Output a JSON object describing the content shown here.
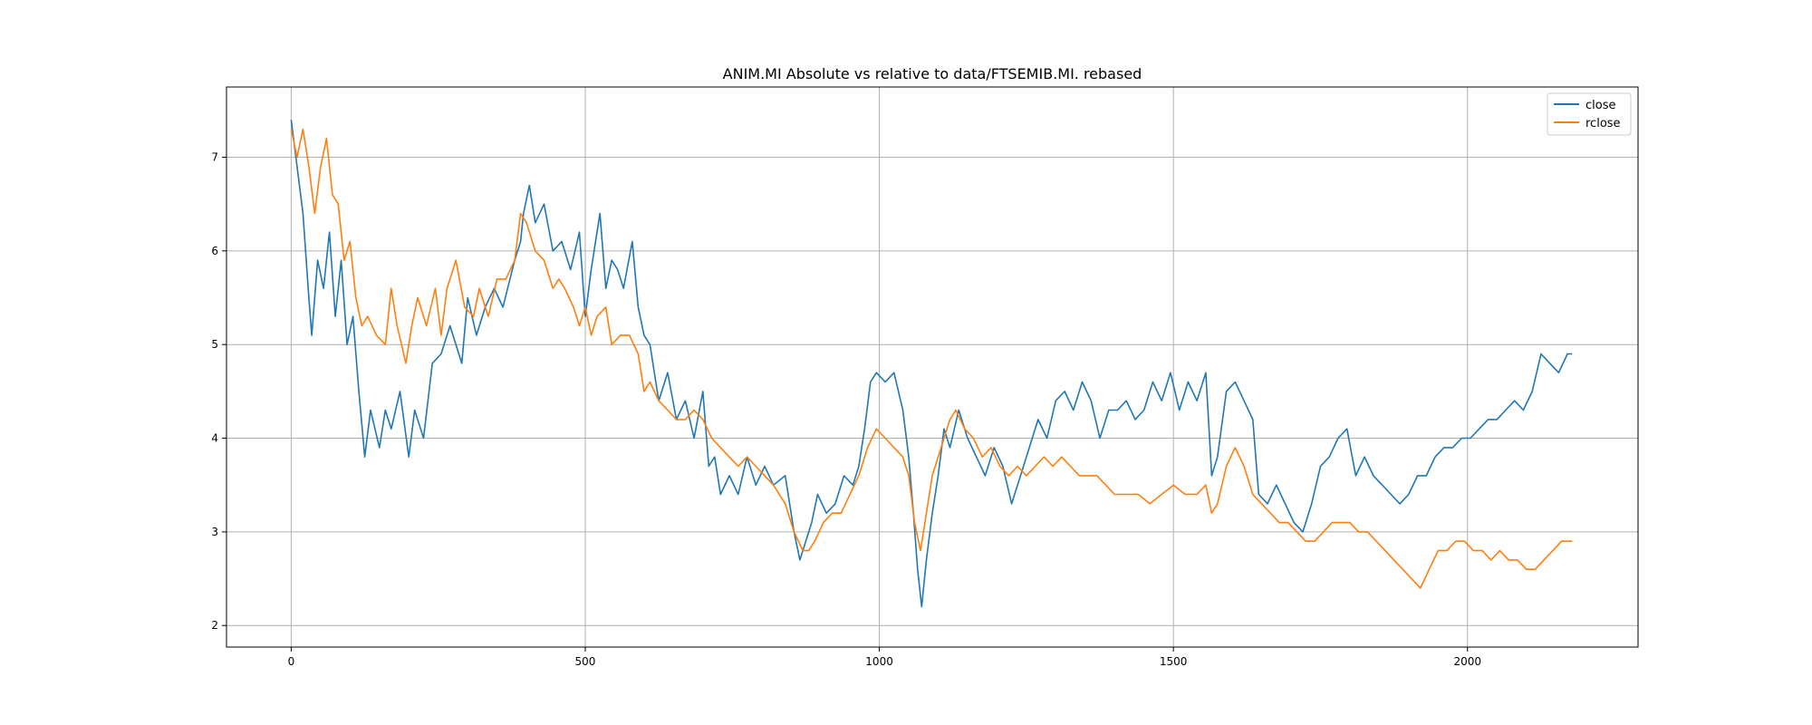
{
  "chart_data": {
    "type": "line",
    "title": "ANIM.MI Absolute vs relative to data/FTSEMIB.MI. rebased",
    "xlabel": "",
    "ylabel": "",
    "xlim": [
      -110,
      2290
    ],
    "ylim": [
      1.77,
      7.75
    ],
    "xticks": [
      0,
      500,
      1000,
      1500,
      2000
    ],
    "yticks": [
      2,
      3,
      4,
      5,
      6,
      7
    ],
    "grid": true,
    "legend_position": "top-right",
    "series": [
      {
        "name": "close",
        "color": "#1f77b4",
        "points": [
          [
            0,
            7.4
          ],
          [
            10,
            6.9
          ],
          [
            20,
            6.4
          ],
          [
            30,
            5.5
          ],
          [
            35,
            5.1
          ],
          [
            45,
            5.9
          ],
          [
            55,
            5.6
          ],
          [
            65,
            6.2
          ],
          [
            75,
            5.3
          ],
          [
            85,
            5.9
          ],
          [
            95,
            5.0
          ],
          [
            105,
            5.3
          ],
          [
            115,
            4.5
          ],
          [
            125,
            3.8
          ],
          [
            135,
            4.3
          ],
          [
            150,
            3.9
          ],
          [
            160,
            4.3
          ],
          [
            170,
            4.1
          ],
          [
            185,
            4.5
          ],
          [
            200,
            3.8
          ],
          [
            210,
            4.3
          ],
          [
            225,
            4.0
          ],
          [
            240,
            4.8
          ],
          [
            255,
            4.9
          ],
          [
            270,
            5.2
          ],
          [
            290,
            4.8
          ],
          [
            300,
            5.5
          ],
          [
            315,
            5.1
          ],
          [
            330,
            5.4
          ],
          [
            345,
            5.6
          ],
          [
            360,
            5.4
          ],
          [
            380,
            5.9
          ],
          [
            390,
            6.1
          ],
          [
            395,
            6.4
          ],
          [
            405,
            6.7
          ],
          [
            415,
            6.3
          ],
          [
            430,
            6.5
          ],
          [
            445,
            6.0
          ],
          [
            460,
            6.1
          ],
          [
            475,
            5.8
          ],
          [
            490,
            6.2
          ],
          [
            500,
            5.3
          ],
          [
            510,
            5.8
          ],
          [
            525,
            6.4
          ],
          [
            535,
            5.6
          ],
          [
            545,
            5.9
          ],
          [
            555,
            5.8
          ],
          [
            565,
            5.6
          ],
          [
            580,
            6.1
          ],
          [
            590,
            5.4
          ],
          [
            600,
            5.1
          ],
          [
            610,
            5.0
          ],
          [
            625,
            4.4
          ],
          [
            640,
            4.7
          ],
          [
            655,
            4.2
          ],
          [
            670,
            4.4
          ],
          [
            685,
            4.0
          ],
          [
            700,
            4.5
          ],
          [
            710,
            3.7
          ],
          [
            720,
            3.8
          ],
          [
            730,
            3.4
          ],
          [
            745,
            3.6
          ],
          [
            760,
            3.4
          ],
          [
            775,
            3.8
          ],
          [
            790,
            3.5
          ],
          [
            805,
            3.7
          ],
          [
            820,
            3.5
          ],
          [
            840,
            3.6
          ],
          [
            855,
            3.0
          ],
          [
            865,
            2.7
          ],
          [
            875,
            2.9
          ],
          [
            885,
            3.1
          ],
          [
            895,
            3.4
          ],
          [
            910,
            3.2
          ],
          [
            925,
            3.3
          ],
          [
            940,
            3.6
          ],
          [
            955,
            3.5
          ],
          [
            965,
            3.7
          ],
          [
            975,
            4.1
          ],
          [
            985,
            4.6
          ],
          [
            995,
            4.7
          ],
          [
            1010,
            4.6
          ],
          [
            1025,
            4.7
          ],
          [
            1040,
            4.3
          ],
          [
            1050,
            3.8
          ],
          [
            1058,
            3.2
          ],
          [
            1065,
            2.6
          ],
          [
            1072,
            2.2
          ],
          [
            1080,
            2.7
          ],
          [
            1090,
            3.2
          ],
          [
            1100,
            3.6
          ],
          [
            1110,
            4.1
          ],
          [
            1120,
            3.9
          ],
          [
            1135,
            4.3
          ],
          [
            1150,
            4.0
          ],
          [
            1165,
            3.8
          ],
          [
            1180,
            3.6
          ],
          [
            1195,
            3.9
          ],
          [
            1210,
            3.7
          ],
          [
            1225,
            3.3
          ],
          [
            1240,
            3.6
          ],
          [
            1255,
            3.9
          ],
          [
            1270,
            4.2
          ],
          [
            1285,
            4.0
          ],
          [
            1300,
            4.4
          ],
          [
            1315,
            4.5
          ],
          [
            1330,
            4.3
          ],
          [
            1345,
            4.6
          ],
          [
            1360,
            4.4
          ],
          [
            1375,
            4.0
          ],
          [
            1390,
            4.3
          ],
          [
            1405,
            4.3
          ],
          [
            1420,
            4.4
          ],
          [
            1435,
            4.2
          ],
          [
            1450,
            4.3
          ],
          [
            1465,
            4.6
          ],
          [
            1480,
            4.4
          ],
          [
            1495,
            4.7
          ],
          [
            1510,
            4.3
          ],
          [
            1525,
            4.6
          ],
          [
            1540,
            4.4
          ],
          [
            1555,
            4.7
          ],
          [
            1565,
            3.6
          ],
          [
            1575,
            3.8
          ],
          [
            1590,
            4.5
          ],
          [
            1605,
            4.6
          ],
          [
            1620,
            4.4
          ],
          [
            1635,
            4.2
          ],
          [
            1645,
            3.4
          ],
          [
            1660,
            3.3
          ],
          [
            1675,
            3.5
          ],
          [
            1690,
            3.3
          ],
          [
            1705,
            3.1
          ],
          [
            1720,
            3.0
          ],
          [
            1735,
            3.3
          ],
          [
            1750,
            3.7
          ],
          [
            1765,
            3.8
          ],
          [
            1780,
            4.0
          ],
          [
            1795,
            4.1
          ],
          [
            1810,
            3.6
          ],
          [
            1825,
            3.8
          ],
          [
            1840,
            3.6
          ],
          [
            1855,
            3.5
          ],
          [
            1870,
            3.4
          ],
          [
            1885,
            3.3
          ],
          [
            1900,
            3.4
          ],
          [
            1915,
            3.6
          ],
          [
            1930,
            3.6
          ],
          [
            1945,
            3.8
          ],
          [
            1960,
            3.9
          ],
          [
            1975,
            3.9
          ],
          [
            1990,
            4.0
          ],
          [
            2005,
            4.0
          ],
          [
            2020,
            4.1
          ],
          [
            2035,
            4.2
          ],
          [
            2050,
            4.2
          ],
          [
            2065,
            4.3
          ],
          [
            2080,
            4.4
          ],
          [
            2095,
            4.3
          ],
          [
            2110,
            4.5
          ],
          [
            2125,
            4.9
          ],
          [
            2140,
            4.8
          ],
          [
            2155,
            4.7
          ],
          [
            2170,
            4.9
          ],
          [
            2178,
            4.9
          ]
        ]
      },
      {
        "name": "rclose",
        "color": "#ff7f0e",
        "points": [
          [
            0,
            7.3
          ],
          [
            10,
            7.0
          ],
          [
            20,
            7.3
          ],
          [
            30,
            6.9
          ],
          [
            40,
            6.4
          ],
          [
            50,
            6.9
          ],
          [
            60,
            7.2
          ],
          [
            70,
            6.6
          ],
          [
            80,
            6.5
          ],
          [
            90,
            5.9
          ],
          [
            100,
            6.1
          ],
          [
            110,
            5.5
          ],
          [
            120,
            5.2
          ],
          [
            130,
            5.3
          ],
          [
            145,
            5.1
          ],
          [
            160,
            5.0
          ],
          [
            170,
            5.6
          ],
          [
            180,
            5.2
          ],
          [
            195,
            4.8
          ],
          [
            205,
            5.2
          ],
          [
            215,
            5.5
          ],
          [
            230,
            5.2
          ],
          [
            245,
            5.6
          ],
          [
            255,
            5.1
          ],
          [
            265,
            5.6
          ],
          [
            280,
            5.9
          ],
          [
            295,
            5.4
          ],
          [
            310,
            5.3
          ],
          [
            320,
            5.6
          ],
          [
            335,
            5.3
          ],
          [
            350,
            5.7
          ],
          [
            365,
            5.7
          ],
          [
            380,
            5.9
          ],
          [
            390,
            6.4
          ],
          [
            400,
            6.3
          ],
          [
            415,
            6.0
          ],
          [
            430,
            5.9
          ],
          [
            445,
            5.6
          ],
          [
            455,
            5.7
          ],
          [
            465,
            5.6
          ],
          [
            480,
            5.4
          ],
          [
            490,
            5.2
          ],
          [
            500,
            5.4
          ],
          [
            510,
            5.1
          ],
          [
            520,
            5.3
          ],
          [
            535,
            5.4
          ],
          [
            545,
            5.0
          ],
          [
            560,
            5.1
          ],
          [
            575,
            5.1
          ],
          [
            590,
            4.9
          ],
          [
            600,
            4.5
          ],
          [
            610,
            4.6
          ],
          [
            625,
            4.4
          ],
          [
            640,
            4.3
          ],
          [
            655,
            4.2
          ],
          [
            670,
            4.2
          ],
          [
            685,
            4.3
          ],
          [
            700,
            4.2
          ],
          [
            715,
            4.0
          ],
          [
            730,
            3.9
          ],
          [
            745,
            3.8
          ],
          [
            760,
            3.7
          ],
          [
            775,
            3.8
          ],
          [
            790,
            3.7
          ],
          [
            805,
            3.6
          ],
          [
            820,
            3.5
          ],
          [
            840,
            3.3
          ],
          [
            855,
            3.0
          ],
          [
            870,
            2.8
          ],
          [
            880,
            2.8
          ],
          [
            890,
            2.9
          ],
          [
            905,
            3.1
          ],
          [
            920,
            3.2
          ],
          [
            935,
            3.2
          ],
          [
            950,
            3.4
          ],
          [
            965,
            3.6
          ],
          [
            980,
            3.9
          ],
          [
            995,
            4.1
          ],
          [
            1010,
            4.0
          ],
          [
            1025,
            3.9
          ],
          [
            1040,
            3.8
          ],
          [
            1050,
            3.6
          ],
          [
            1060,
            3.1
          ],
          [
            1070,
            2.8
          ],
          [
            1080,
            3.2
          ],
          [
            1090,
            3.6
          ],
          [
            1100,
            3.8
          ],
          [
            1110,
            4.0
          ],
          [
            1120,
            4.2
          ],
          [
            1130,
            4.3
          ],
          [
            1145,
            4.1
          ],
          [
            1160,
            4.0
          ],
          [
            1175,
            3.8
          ],
          [
            1190,
            3.9
          ],
          [
            1205,
            3.7
          ],
          [
            1220,
            3.6
          ],
          [
            1235,
            3.7
          ],
          [
            1250,
            3.6
          ],
          [
            1265,
            3.7
          ],
          [
            1280,
            3.8
          ],
          [
            1295,
            3.7
          ],
          [
            1310,
            3.8
          ],
          [
            1325,
            3.7
          ],
          [
            1340,
            3.6
          ],
          [
            1355,
            3.6
          ],
          [
            1370,
            3.6
          ],
          [
            1385,
            3.5
          ],
          [
            1400,
            3.4
          ],
          [
            1420,
            3.4
          ],
          [
            1440,
            3.4
          ],
          [
            1460,
            3.3
          ],
          [
            1480,
            3.4
          ],
          [
            1500,
            3.5
          ],
          [
            1520,
            3.4
          ],
          [
            1540,
            3.4
          ],
          [
            1555,
            3.5
          ],
          [
            1565,
            3.2
          ],
          [
            1575,
            3.3
          ],
          [
            1590,
            3.7
          ],
          [
            1605,
            3.9
          ],
          [
            1620,
            3.7
          ],
          [
            1635,
            3.4
          ],
          [
            1650,
            3.3
          ],
          [
            1665,
            3.2
          ],
          [
            1680,
            3.1
          ],
          [
            1695,
            3.1
          ],
          [
            1710,
            3.0
          ],
          [
            1725,
            2.9
          ],
          [
            1740,
            2.9
          ],
          [
            1755,
            3.0
          ],
          [
            1770,
            3.1
          ],
          [
            1785,
            3.1
          ],
          [
            1800,
            3.1
          ],
          [
            1815,
            3.0
          ],
          [
            1830,
            3.0
          ],
          [
            1845,
            2.9
          ],
          [
            1860,
            2.8
          ],
          [
            1875,
            2.7
          ],
          [
            1890,
            2.6
          ],
          [
            1905,
            2.5
          ],
          [
            1920,
            2.4
          ],
          [
            1935,
            2.6
          ],
          [
            1950,
            2.8
          ],
          [
            1965,
            2.8
          ],
          [
            1980,
            2.9
          ],
          [
            1995,
            2.9
          ],
          [
            2010,
            2.8
          ],
          [
            2025,
            2.8
          ],
          [
            2040,
            2.7
          ],
          [
            2055,
            2.8
          ],
          [
            2070,
            2.7
          ],
          [
            2085,
            2.7
          ],
          [
            2100,
            2.6
          ],
          [
            2115,
            2.6
          ],
          [
            2130,
            2.7
          ],
          [
            2145,
            2.8
          ],
          [
            2160,
            2.9
          ],
          [
            2170,
            2.9
          ],
          [
            2178,
            2.9
          ]
        ]
      }
    ]
  }
}
